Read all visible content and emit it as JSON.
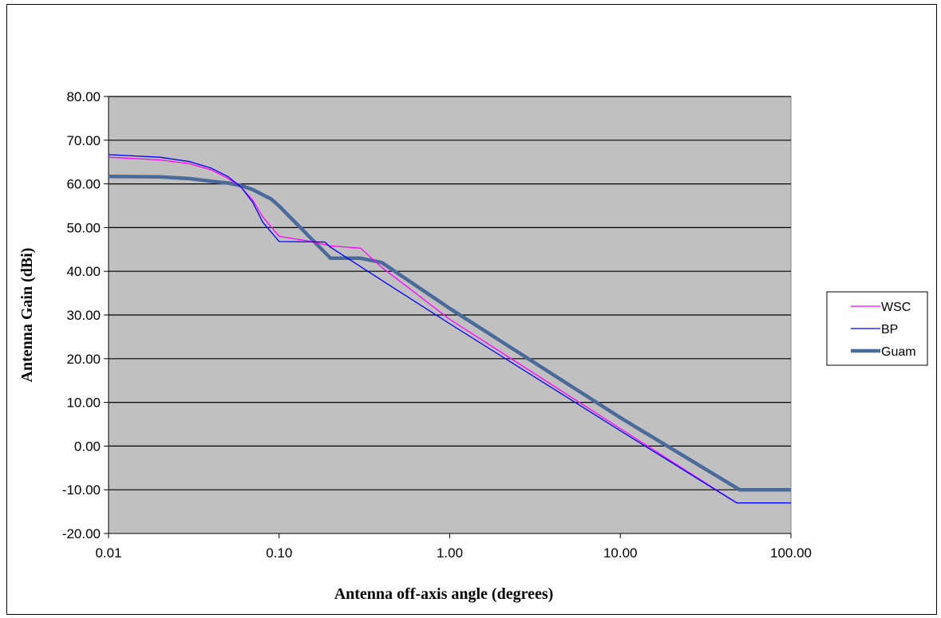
{
  "chart_data": {
    "type": "line",
    "title": "",
    "xlabel": "Antenna  off-axis angle (degrees)",
    "ylabel": "Antenna Gain (dBi)",
    "x_scale": "log",
    "xlim": [
      0.01,
      100
    ],
    "ylim": [
      -20,
      80
    ],
    "x_ticks": [
      "0.01",
      "0.10",
      "1.00",
      "10.00",
      "100.00"
    ],
    "y_ticks": [
      "80.00",
      "70.00",
      "60.00",
      "50.00",
      "40.00",
      "30.00",
      "20.00",
      "10.00",
      "0.00",
      "-10.00",
      "-20.00"
    ],
    "grid": "horizontal",
    "legend_position": "right",
    "plot_background": "#c0c0c0",
    "series": [
      {
        "name": "WSC",
        "color": "#ff00ff",
        "points": [
          [
            0.01,
            66.1
          ],
          [
            0.02,
            65.5
          ],
          [
            0.03,
            64.6
          ],
          [
            0.04,
            63.2
          ],
          [
            0.05,
            61.3
          ],
          [
            0.06,
            59.2
          ],
          [
            0.07,
            56.3
          ],
          [
            0.08,
            52.5
          ],
          [
            0.1,
            48.0
          ],
          [
            0.15,
            46.9
          ],
          [
            0.2,
            45.8
          ],
          [
            0.3,
            45.3
          ],
          [
            0.4,
            40.9
          ],
          [
            1.0,
            29.0
          ],
          [
            10.0,
            4.0
          ],
          [
            48.0,
            -13.0
          ],
          [
            100.0,
            -13.0
          ]
        ]
      },
      {
        "name": "BP",
        "color": "#0000ff",
        "points": [
          [
            0.01,
            66.7
          ],
          [
            0.02,
            66.1
          ],
          [
            0.03,
            65.1
          ],
          [
            0.04,
            63.6
          ],
          [
            0.05,
            61.7
          ],
          [
            0.06,
            59.2
          ],
          [
            0.07,
            55.8
          ],
          [
            0.08,
            51.3
          ],
          [
            0.1,
            46.8
          ],
          [
            0.185,
            46.7
          ],
          [
            0.2,
            45.5
          ],
          [
            0.5,
            35.5
          ],
          [
            1.0,
            28.0
          ],
          [
            10.0,
            3.5
          ],
          [
            48.0,
            -13.0
          ],
          [
            100.0,
            -13.0
          ]
        ]
      },
      {
        "name": "Guam",
        "color": "#4a6b9a",
        "points": [
          [
            0.01,
            61.7
          ],
          [
            0.02,
            61.6
          ],
          [
            0.03,
            61.2
          ],
          [
            0.04,
            60.6
          ],
          [
            0.05,
            60.2
          ],
          [
            0.06,
            59.6
          ],
          [
            0.07,
            58.7
          ],
          [
            0.09,
            56.5
          ],
          [
            0.1,
            54.9
          ],
          [
            0.2,
            43.0
          ],
          [
            0.3,
            43.0
          ],
          [
            0.4,
            42.0
          ],
          [
            1.0,
            31.5
          ],
          [
            10.0,
            6.5
          ],
          [
            50.0,
            -10.0
          ],
          [
            100.0,
            -10.0
          ]
        ]
      }
    ]
  }
}
